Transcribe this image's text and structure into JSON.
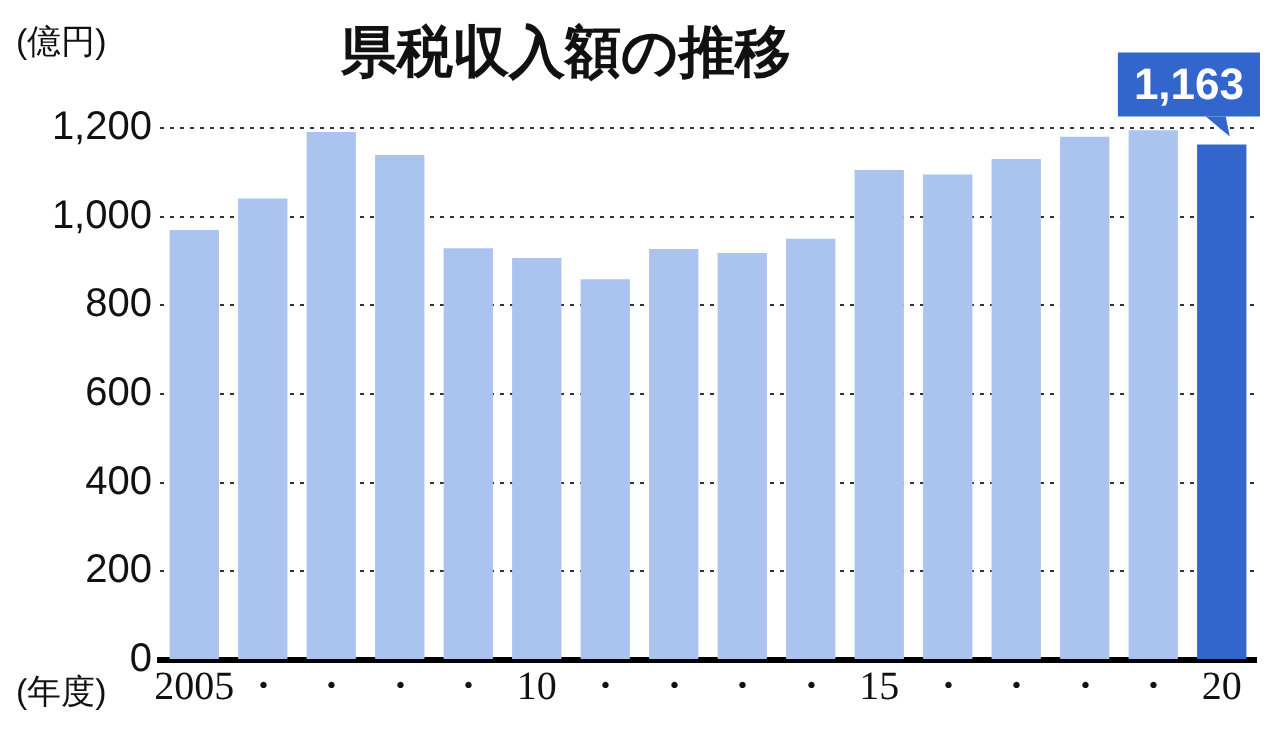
{
  "chart_data": {
    "type": "bar",
    "title": "県税収入額の推移",
    "ylabel": "(億円)",
    "xlabel": "(年度)",
    "categories": [
      "2005",
      "・",
      "・",
      "・",
      "・",
      "10",
      "・",
      "・",
      "・",
      "・",
      "15",
      "・",
      "・",
      "・",
      "・",
      "20"
    ],
    "values": [
      970,
      1041,
      1191,
      1139,
      929,
      907,
      859,
      927,
      918,
      950,
      1105,
      1095,
      1130,
      1180,
      1195,
      1163
    ],
    "colors": [
      "#aac4ef",
      "#aac4ef",
      "#aac4ef",
      "#aac4ef",
      "#aac4ef",
      "#aac4ef",
      "#aac4ef",
      "#aac4ef",
      "#aac4ef",
      "#aac4ef",
      "#aac4ef",
      "#aac4ef",
      "#aac4ef",
      "#aac4ef",
      "#aac4ef",
      "#3366cc"
    ],
    "value_labels": [
      null,
      null,
      null,
      null,
      null,
      null,
      null,
      null,
      null,
      null,
      null,
      null,
      null,
      null,
      null,
      "1,163"
    ],
    "ylim": [
      0,
      1200
    ],
    "yticks": [
      0,
      {
        "value": 200,
        "label": "200"
      },
      400,
      600,
      800,
      {
        "value": 1000,
        "label": "1,000"
      },
      {
        "value": 1200,
        "label": "1,200"
      }
    ],
    "grid": "y",
    "legend": false
  }
}
